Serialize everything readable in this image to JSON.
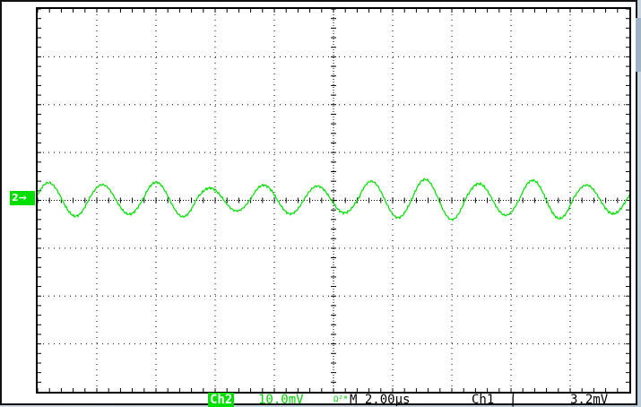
{
  "channel_marker": "2→",
  "status": {
    "channel": "Ch2",
    "volts_per_div": "10.0mV",
    "bandwidth_icon": "Ω²ᵂ",
    "time_per_div": "M 2.00µs",
    "trigger_source": "Ch1",
    "trigger_slope_icon": "rising-edge-icon",
    "trigger_slope_glyph": "⌠",
    "trigger_level": "3.2mV"
  },
  "colors": {
    "trace": "#00e000",
    "grid": "#000000",
    "status_green": "#00d000"
  },
  "trace": {
    "samples_cycles": 11,
    "amplitude_mV": [
      3.5,
      3.1,
      3.6,
      2.4,
      3.0,
      2.8,
      3.8,
      4.2,
      3.3,
      4.0,
      3.0
    ]
  }
}
